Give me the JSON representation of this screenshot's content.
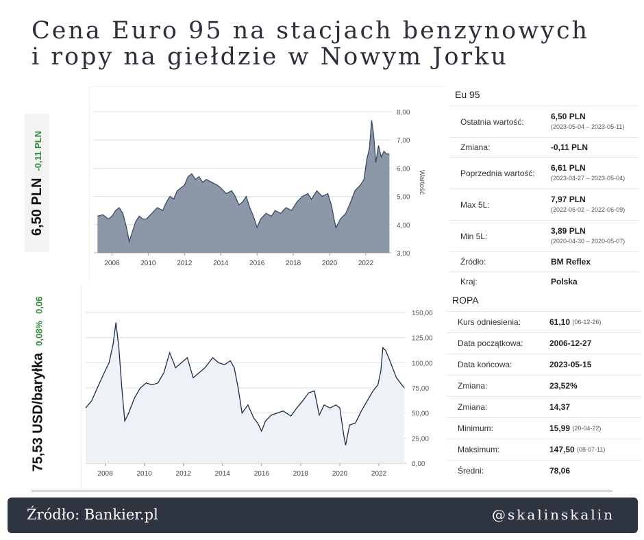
{
  "title": {
    "line1": "Cena Euro 95 na stacjach benzynowych",
    "line2": "i ropy na giełdzie w Nowym Jorku"
  },
  "badge_euro": {
    "price": "6,50 PLN",
    "change": "-0,11 PLN",
    "change_color": "#2e8b3a"
  },
  "badge_oil": {
    "price": "75,53 USD/baryłka",
    "change_pct": "0,08%",
    "change_abs": "0,06",
    "change_color": "#2e8b3a"
  },
  "euro_panel": {
    "heading": "Eu 95",
    "rows": [
      {
        "label": "Ostatnia wartość:",
        "value": "6,50 PLN",
        "sub": "(2023-05-04 – 2023-05-11)"
      },
      {
        "label": "Zmiana:",
        "value": "-0,11 PLN",
        "sub": ""
      },
      {
        "label": "Poprzednia wartość:",
        "value": "6,61 PLN",
        "sub": "(2023-04-27 – 2023-05-04)"
      },
      {
        "label": "Max 5L:",
        "value": "7,97 PLN",
        "sub": "(2022-06-02 – 2022-06-09)"
      },
      {
        "label": "Min 5L:",
        "value": "3,89 PLN",
        "sub": "(2020-04-30 – 2020-05-07)"
      },
      {
        "label": "Źródło:",
        "value": "BM Reflex",
        "sub": ""
      },
      {
        "label": "Kraj:",
        "value": "Polska",
        "sub": ""
      }
    ]
  },
  "oil_panel": {
    "heading": "ROPA",
    "rows": [
      {
        "label": "Kurs odniesienia:",
        "value": "61,10",
        "sub": "(06-12-26)"
      },
      {
        "label": "Data początkowa:",
        "value": "2006-12-27",
        "sub": ""
      },
      {
        "label": "Data końcowa:",
        "value": "2023-05-15",
        "sub": ""
      },
      {
        "label": "Zmiana:",
        "value": "23,52%",
        "sub": ""
      },
      {
        "label": "Zmiana:",
        "value": "14,37",
        "sub": ""
      },
      {
        "label": "Minimum:",
        "value": "15,99",
        "sub": "(20-04-22)"
      },
      {
        "label": "Maksimum:",
        "value": "147,50",
        "sub": "(08-07-11)"
      },
      {
        "label": "Średni:",
        "value": "78,06",
        "sub": ""
      }
    ]
  },
  "footer": {
    "source": "Źródło: Bankier.pl",
    "handle": "@skalinskalin"
  },
  "chart_data": [
    {
      "type": "area",
      "ylabel": "Wartość",
      "xlim": [
        2007.0,
        2023.4
      ],
      "ylim": [
        3.0,
        8.0
      ],
      "x_ticks": [
        2008,
        2010,
        2012,
        2014,
        2016,
        2018,
        2020,
        2022
      ],
      "y_ticks": [
        "3,00",
        "4,00",
        "5,00",
        "6,00",
        "7,00",
        "8,00"
      ],
      "y_tick_values": [
        3,
        4,
        5,
        6,
        7,
        8
      ],
      "fill_color": "#8c98a9",
      "line_color": "#3a4a60",
      "series": [
        {
          "x": [
            2007.2,
            2007.5,
            2007.8,
            2008.0,
            2008.2,
            2008.4,
            2008.6,
            2008.8,
            2008.95,
            2009.1,
            2009.3,
            2009.5,
            2009.7,
            2009.9,
            2010.2,
            2010.5,
            2010.8,
            2011.0,
            2011.2,
            2011.4,
            2011.6,
            2011.8,
            2012.0,
            2012.2,
            2012.4,
            2012.6,
            2012.8,
            2013.0,
            2013.2,
            2013.5,
            2013.8,
            2014.0,
            2014.3,
            2014.6,
            2014.8,
            2015.0,
            2015.2,
            2015.4,
            2015.6,
            2015.8,
            2016.0,
            2016.2,
            2016.5,
            2016.8,
            2017.0,
            2017.3,
            2017.6,
            2017.9,
            2018.2,
            2018.5,
            2018.8,
            2019.0,
            2019.3,
            2019.6,
            2019.9,
            2020.1,
            2020.25,
            2020.35,
            2020.6,
            2020.9,
            2021.1,
            2021.4,
            2021.7,
            2021.9,
            2022.05,
            2022.2,
            2022.32,
            2022.43,
            2022.55,
            2022.7,
            2022.85,
            2023.0,
            2023.15,
            2023.3
          ],
          "y": [
            4.3,
            4.35,
            4.2,
            4.3,
            4.5,
            4.6,
            4.4,
            3.9,
            3.4,
            3.7,
            4.1,
            4.3,
            4.2,
            4.2,
            4.4,
            4.6,
            4.5,
            4.8,
            5.0,
            4.9,
            5.2,
            5.3,
            5.4,
            5.7,
            5.8,
            5.6,
            5.7,
            5.5,
            5.6,
            5.5,
            5.4,
            5.3,
            5.1,
            5.2,
            5.0,
            4.7,
            4.8,
            5.0,
            4.6,
            4.3,
            3.9,
            4.2,
            4.4,
            4.3,
            4.5,
            4.4,
            4.6,
            4.5,
            4.8,
            5.0,
            5.1,
            4.9,
            5.2,
            5.0,
            5.1,
            4.7,
            4.2,
            3.89,
            4.2,
            4.4,
            4.7,
            5.2,
            5.4,
            5.6,
            6.3,
            6.7,
            7.7,
            7.2,
            6.2,
            6.8,
            6.4,
            6.6,
            6.5,
            6.5
          ]
        }
      ]
    },
    {
      "type": "line",
      "xlim": [
        2007.0,
        2023.4
      ],
      "ylim": [
        0,
        150
      ],
      "x_ticks": [
        2008,
        2010,
        2012,
        2014,
        2016,
        2018,
        2020,
        2022
      ],
      "y_ticks": [
        "0,00",
        "25,00",
        "50,00",
        "75,00",
        "100,00",
        "125,00",
        "150,00"
      ],
      "y_tick_values": [
        0,
        25,
        50,
        75,
        100,
        125,
        150
      ],
      "line_color": "#1a2a4a",
      "fill_color": "#eef1f6",
      "series": [
        {
          "x": [
            2007.0,
            2007.3,
            2007.6,
            2007.9,
            2008.2,
            2008.4,
            2008.55,
            2008.7,
            2008.85,
            2009.0,
            2009.2,
            2009.5,
            2009.8,
            2010.1,
            2010.4,
            2010.7,
            2011.0,
            2011.3,
            2011.6,
            2011.9,
            2012.2,
            2012.5,
            2012.8,
            2013.1,
            2013.5,
            2013.8,
            2014.1,
            2014.4,
            2014.6,
            2014.8,
            2015.0,
            2015.3,
            2015.6,
            2015.8,
            2016.0,
            2016.2,
            2016.5,
            2016.8,
            2017.1,
            2017.5,
            2017.8,
            2018.1,
            2018.4,
            2018.7,
            2018.95,
            2019.2,
            2019.5,
            2019.8,
            2020.0,
            2020.2,
            2020.3,
            2020.5,
            2020.8,
            2021.1,
            2021.4,
            2021.7,
            2021.95,
            2022.1,
            2022.2,
            2022.35,
            2022.5,
            2022.7,
            2022.9,
            2023.1,
            2023.3
          ],
          "y": [
            55,
            62,
            75,
            88,
            100,
            118,
            140,
            115,
            75,
            42,
            50,
            65,
            75,
            80,
            78,
            80,
            90,
            110,
            95,
            100,
            105,
            85,
            90,
            95,
            105,
            100,
            98,
            102,
            95,
            75,
            50,
            58,
            45,
            40,
            32,
            42,
            48,
            50,
            52,
            47,
            55,
            62,
            70,
            72,
            48,
            58,
            55,
            58,
            55,
            28,
            18,
            38,
            40,
            52,
            62,
            72,
            78,
            92,
            115,
            112,
            105,
            95,
            85,
            80,
            75
          ]
        }
      ]
    }
  ]
}
